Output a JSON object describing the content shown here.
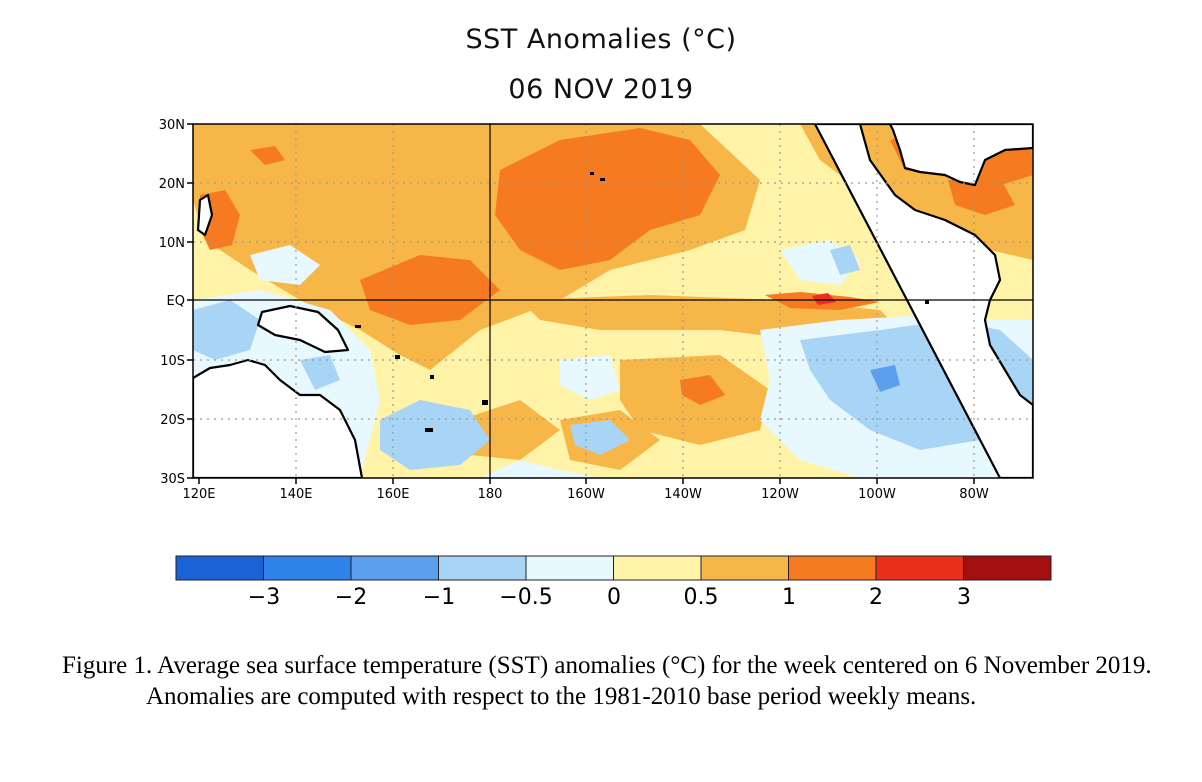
{
  "title": "SST Anomalies (°C)",
  "subtitle": "06 NOV 2019",
  "lat_labels": [
    "30N",
    "20N",
    "10N",
    "EQ",
    "10S",
    "20S",
    "30S"
  ],
  "lon_labels": [
    "120E",
    "140E",
    "160E",
    "180",
    "160W",
    "140W",
    "120W",
    "100W",
    "80W"
  ],
  "colorbar": {
    "colors": [
      "#1a63d6",
      "#2f82e8",
      "#5aa0ec",
      "#a8d4f6",
      "#e8f8ff",
      "#fff3a8",
      "#f7b648",
      "#f57a20",
      "#e8301a",
      "#a30f0f"
    ],
    "labels": [
      "−3",
      "−2",
      "−1",
      "−0.5",
      "0",
      "0.5",
      "1",
      "2",
      "3"
    ]
  },
  "caption": "Figure 1. Average sea surface temperature (SST) anomalies (°C) for the week centered on 6 November 2019.  Anomalies are computed with respect to the 1981-2010 base period weekly means."
}
